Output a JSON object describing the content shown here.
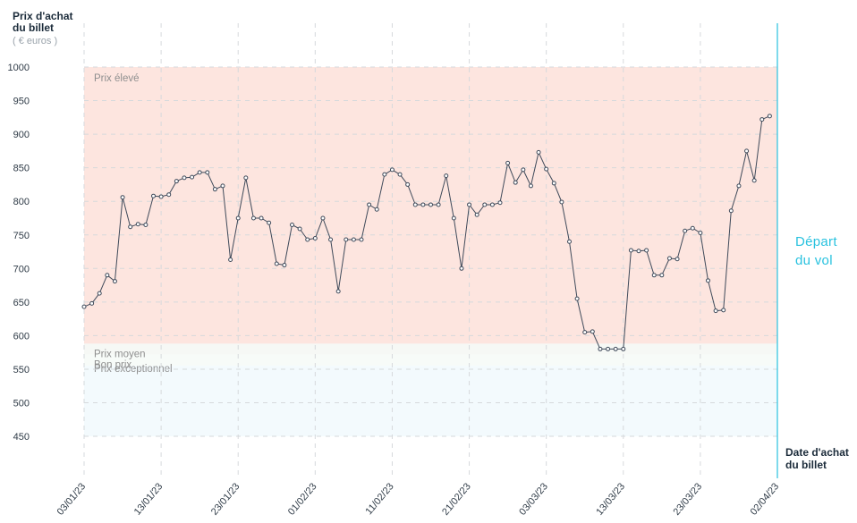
{
  "chart_data": {
    "type": "line",
    "title": "",
    "ylabel": [
      "Prix d'achat",
      "du billet"
    ],
    "yunit": "( € euros )",
    "xlabel": [
      "Date d'achat",
      "du billet"
    ],
    "ylim": [
      400,
      1000
    ],
    "yticks": [
      450,
      500,
      550,
      600,
      650,
      700,
      750,
      800,
      850,
      900,
      950,
      1000
    ],
    "xticks": [
      "03/01/23",
      "13/01/23",
      "23/01/23",
      "01/02/23",
      "11/02/23",
      "21/02/23",
      "03/03/23",
      "13/03/23",
      "23/03/23",
      "02/04/23"
    ],
    "grid": true,
    "bands": [
      {
        "label": "Prix élevé",
        "from": 588,
        "to": 1000,
        "color": "#fde5df"
      },
      {
        "label": "Prix moyen",
        "from": 572,
        "to": 588,
        "color": "#f6f8f5"
      },
      {
        "label": "Bon prix",
        "from": 555,
        "to": 572,
        "color": "#f7fbf8"
      },
      {
        "label": "Prix exceptionnel",
        "from": 450,
        "to": 555,
        "color": "#f3fafd"
      }
    ],
    "departure": {
      "label": [
        "Départ",
        "du vol"
      ],
      "date_index": 90,
      "color": "#29c2df"
    },
    "series": [
      {
        "values": [
          643,
          648,
          663,
          690,
          681,
          806,
          762,
          766,
          765,
          808,
          807,
          810,
          830,
          835,
          836,
          843,
          843,
          818,
          823,
          713,
          775,
          835,
          775,
          775,
          768,
          707,
          705,
          765,
          759,
          743,
          745,
          775,
          743,
          666,
          743,
          743,
          743,
          795,
          788,
          840,
          847,
          840,
          825,
          795,
          795,
          795,
          795,
          838,
          775,
          700,
          795,
          780,
          795,
          795,
          798,
          857,
          828,
          847,
          823,
          873,
          848,
          827,
          799,
          740,
          655,
          605,
          606,
          580,
          580,
          580,
          580,
          727,
          726,
          727,
          690,
          690,
          715,
          714,
          756,
          760,
          753,
          682,
          637,
          638,
          786,
          823,
          875,
          831,
          922,
          927
        ],
        "color": "#3f4a5a"
      }
    ]
  }
}
